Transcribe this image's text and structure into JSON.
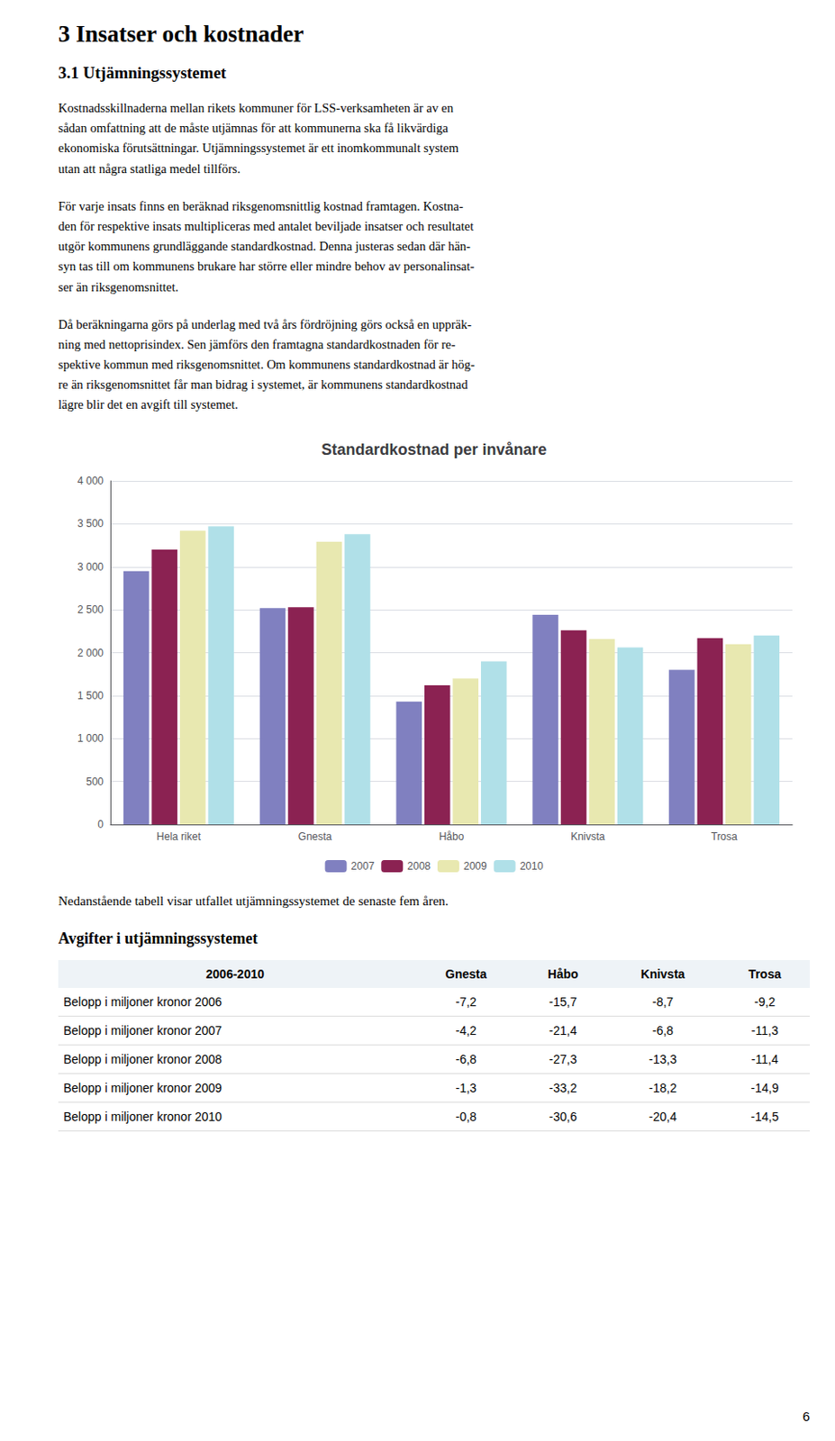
{
  "title": "3 Insatser och kostnader",
  "subtitle": "3.1 Utjämningssystemet",
  "annotations": [
    "Kostnadsskillnaderna mellan rikets kommuner för LSS-verksamheten är av en\nsådan omfattning att de måste utjämnas för att kommunerna ska få likvärdiga\nekonomiska förutsättningar. Utjämningssystemet är ett inomkommunalt system\nutan att några statliga medel tillförs.",
    "För varje insats finns en beräknad riksgenomsnittlig kostnad framtagen. Kostna-\nden för respektive insats multipliceras med antalet beviljade insatser och resultatet\nutgör kommunens grundläggande standardkostnad. Denna justeras sedan där hän-\nsyn tas till om kommunens brukare har större eller mindre behov av personalinsat-\nser än riksgenomsnittet.",
    "Då beräkningarna görs på underlag med två års fördröjning görs också en uppräk-\nning med nettoprisindex. Sen jämförs den framtagna standardkostnaden för re-\nspektive kommun med riksgenomsnittet. Om kommunens standardkostnad är hög-\nre än riksgenomsnittet får man bidrag i systemet, är kommunens standardkostnad\nlägre blir det en avgift till systemet.",
    "Nedanstående tabell visar utfallet utjämningssystemet de senaste fem åren.",
    "6"
  ],
  "chart_data": {
    "type": "bar",
    "title": "Standardkostnad per invånare",
    "categories": [
      "Hela riket",
      "Gnesta",
      "Håbo",
      "Knivsta",
      "Trosa"
    ],
    "series": [
      {
        "name": "2007",
        "color": "#8080c0",
        "values": [
          2950,
          2520,
          1430,
          2440,
          1800
        ]
      },
      {
        "name": "2008",
        "color": "#8b2252",
        "values": [
          3200,
          2530,
          1620,
          2260,
          2170
        ]
      },
      {
        "name": "2009",
        "color": "#e8e8b0",
        "values": [
          3420,
          3290,
          1700,
          2160,
          2100
        ]
      },
      {
        "name": "2010",
        "color": "#b0e0e8",
        "values": [
          3470,
          3380,
          1900,
          2060,
          2200
        ]
      }
    ],
    "ylim": [
      0,
      4000
    ],
    "yticks": [
      0,
      500,
      {
        "value": 1000,
        "label": "1 000"
      },
      {
        "value": 1500,
        "label": "1 500"
      },
      {
        "value": 2000,
        "label": "2 000"
      },
      {
        "value": 2500,
        "label": "2 500"
      },
      {
        "value": 3000,
        "label": "3 000"
      },
      {
        "value": 3500,
        "label": "3 500"
      },
      {
        "value": 4000,
        "label": "4 000"
      }
    ],
    "grid": true,
    "legend": "bottom"
  },
  "table": {
    "title": "Avgifter i utjämningssystemet",
    "subtitle": "2006-2010",
    "columns": [
      "Gnesta",
      "Håbo",
      "Knivsta",
      "Trosa"
    ],
    "rows": [
      [
        "Belopp i miljoner kronor 2006",
        "-7,2",
        "-15,7",
        "-8,7",
        "-9,2"
      ],
      [
        "Belopp i miljoner kronor 2007",
        "-4,2",
        "-21,4",
        "-6,8",
        "-11,3"
      ],
      [
        "Belopp i miljoner kronor 2008",
        "-6,8",
        "-27,3",
        "-13,3",
        "-11,4"
      ],
      [
        "Belopp i miljoner kronor 2009",
        "-1,3",
        "-33,2",
        "-18,2",
        "-14,9"
      ],
      [
        "Belopp i miljoner kronor 2010",
        "-0,8",
        "-30,6",
        "-20,4",
        "-14,5"
      ]
    ]
  }
}
